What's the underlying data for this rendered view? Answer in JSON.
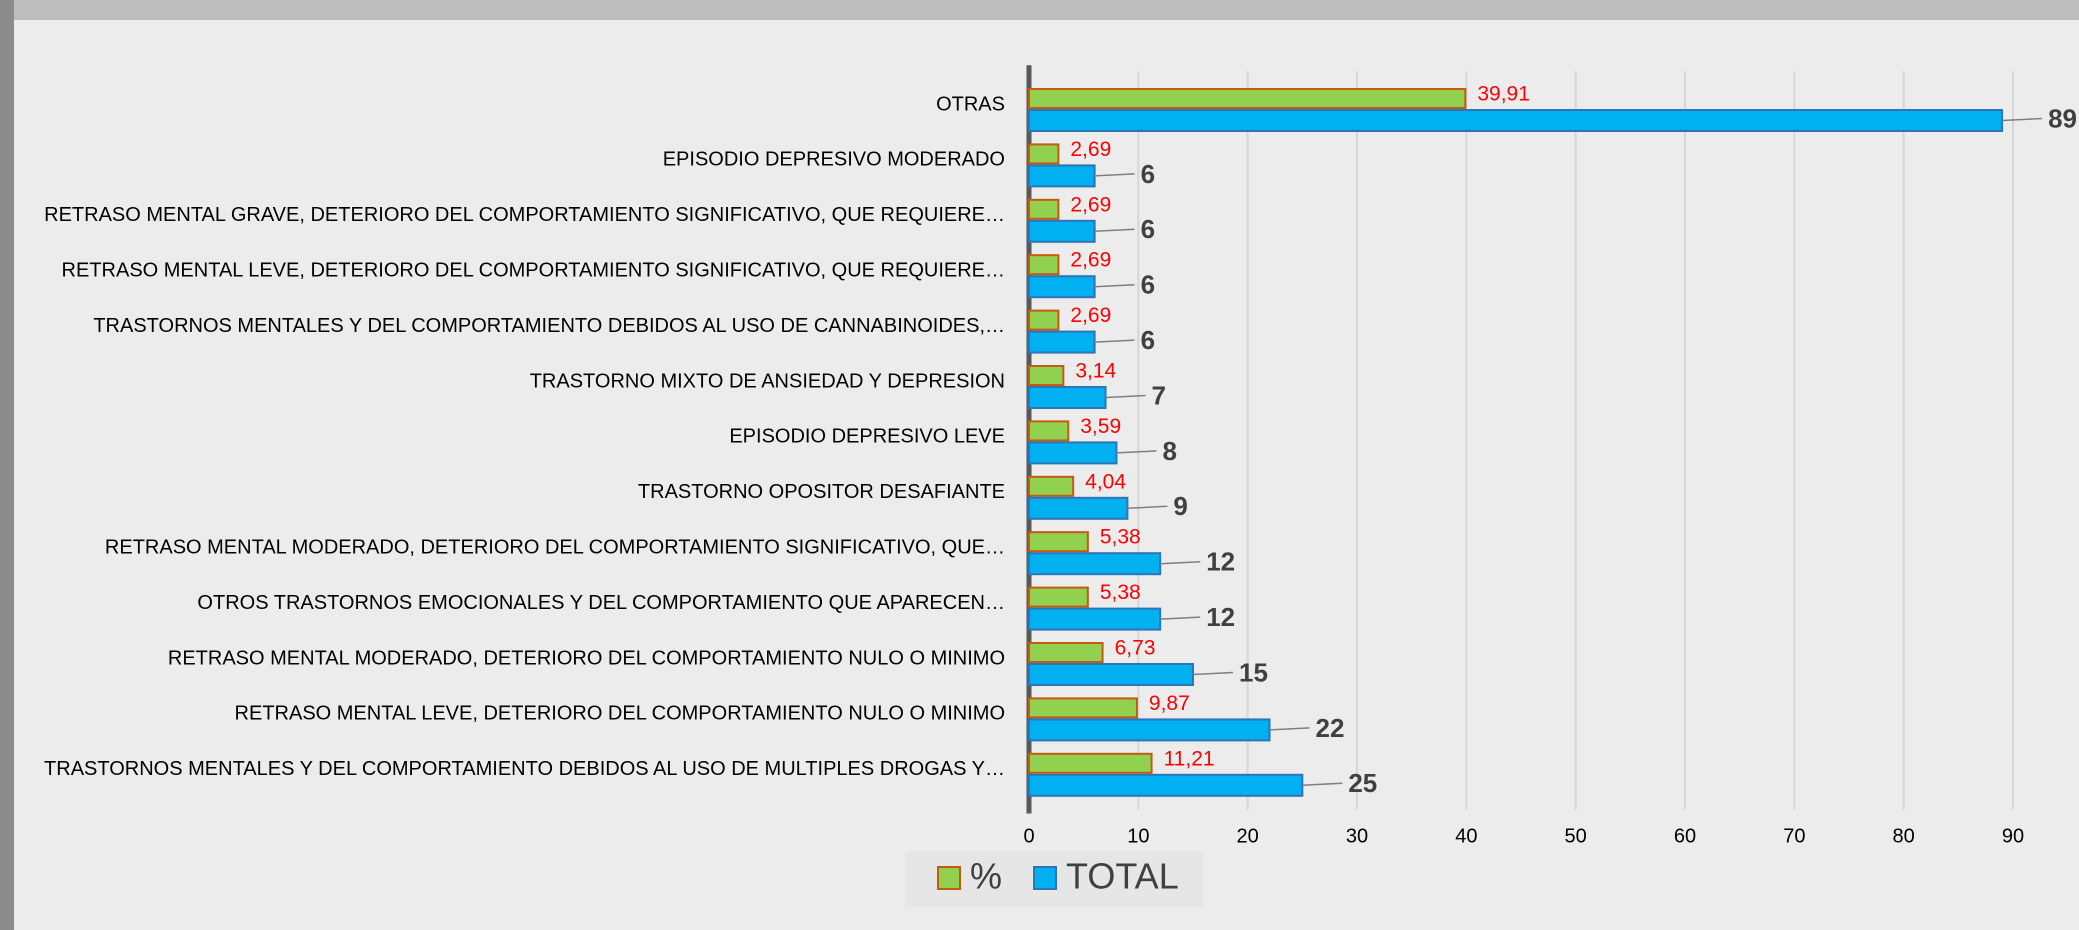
{
  "chart_data": {
    "type": "bar",
    "orientation": "horizontal",
    "categories": [
      "OTRAS",
      "EPISODIO DEPRESIVO MODERADO",
      "RETRASO MENTAL GRAVE, DETERIORO DEL COMPORTAMIENTO SIGNIFICATIVO, QUE REQUIERE…",
      "RETRASO MENTAL LEVE, DETERIORO DEL COMPORTAMIENTO SIGNIFICATIVO, QUE REQUIERE…",
      "TRASTORNOS MENTALES Y DEL COMPORTAMIENTO DEBIDOS AL USO DE CANNABINOIDES,…",
      "TRASTORNO MIXTO DE ANSIEDAD Y DEPRESION",
      "EPISODIO DEPRESIVO LEVE",
      "TRASTORNO OPOSITOR DESAFIANTE",
      "RETRASO MENTAL MODERADO, DETERIORO DEL COMPORTAMIENTO SIGNIFICATIVO, QUE…",
      "OTROS TRASTORNOS EMOCIONALES Y DEL COMPORTAMIENTO QUE APARECEN…",
      "RETRASO MENTAL MODERADO, DETERIORO DEL COMPORTAMIENTO NULO O MINIMO",
      "RETRASO MENTAL LEVE, DETERIORO DEL COMPORTAMIENTO NULO O MINIMO",
      "TRASTORNOS MENTALES Y DEL COMPORTAMIENTO DEBIDOS AL USO DE MULTIPLES DROGAS Y…"
    ],
    "series": [
      {
        "name": "%",
        "color": "#92d050",
        "values": [
          39.91,
          2.69,
          2.69,
          2.69,
          2.69,
          3.14,
          3.59,
          4.04,
          5.38,
          5.38,
          6.73,
          9.87,
          11.21
        ],
        "value_labels": [
          "39,91",
          "2,69",
          "2,69",
          "2,69",
          "2,69",
          "3,14",
          "3,59",
          "4,04",
          "5,38",
          "5,38",
          "6,73",
          "9,87",
          "11,21"
        ]
      },
      {
        "name": "TOTAL",
        "color": "#00b0f0",
        "values": [
          89,
          6,
          6,
          6,
          6,
          7,
          8,
          9,
          12,
          12,
          15,
          22,
          25
        ]
      }
    ],
    "xlim": [
      0,
      90
    ],
    "xticks": [
      0,
      10,
      20,
      30,
      40,
      50,
      60,
      70,
      80,
      90
    ],
    "grid": true,
    "legend": "bottom"
  }
}
